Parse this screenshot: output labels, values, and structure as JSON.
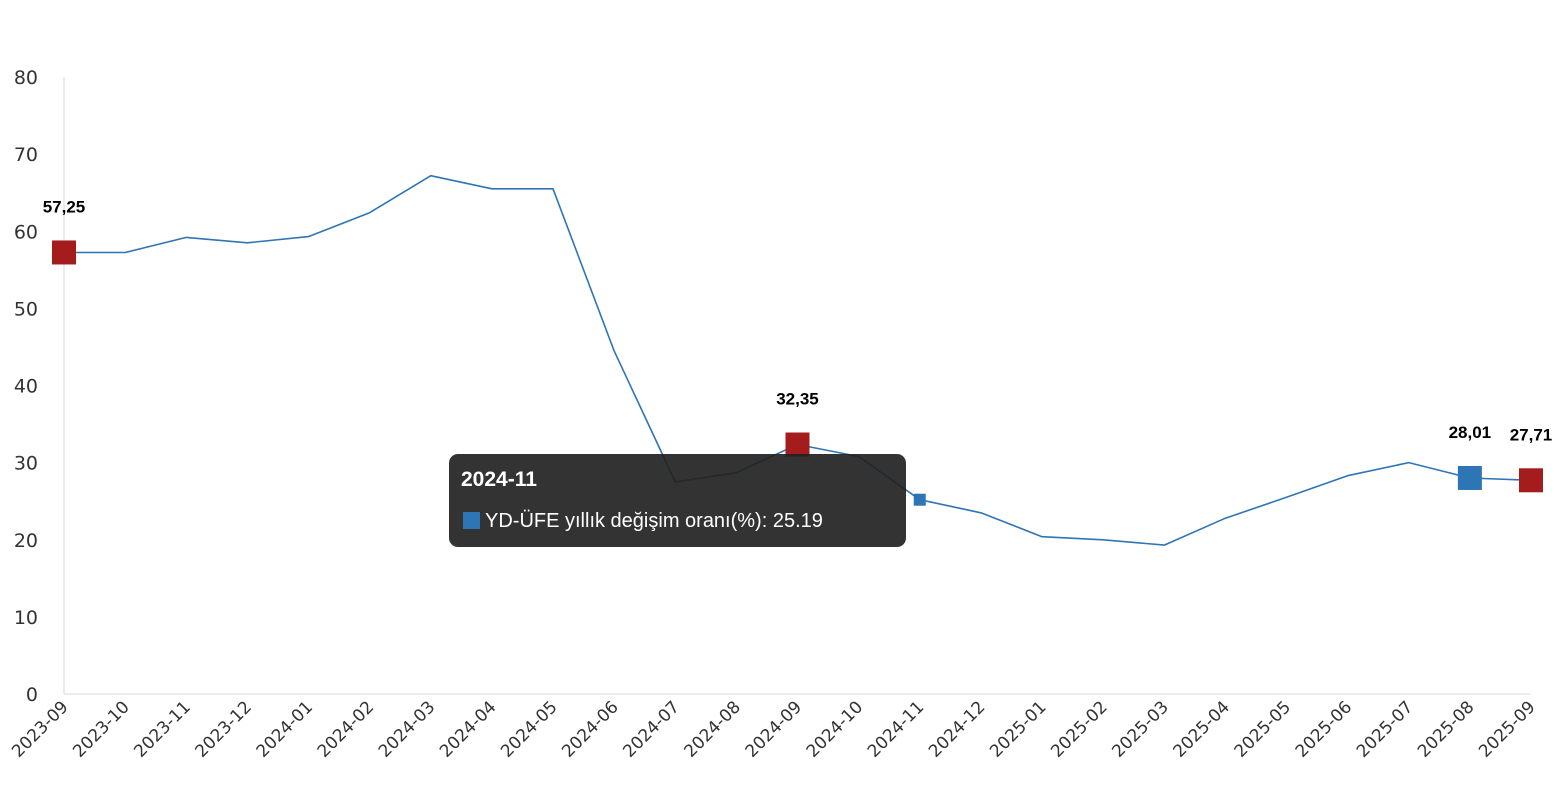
{
  "chart_data": {
    "type": "line",
    "categories": [
      "2023-09",
      "2023-10",
      "2023-11",
      "2023-12",
      "2024-01",
      "2024-02",
      "2024-03",
      "2024-04",
      "2024-05",
      "2024-06",
      "2024-07",
      "2024-08",
      "2024-09",
      "2024-10",
      "2024-11",
      "2024-12",
      "2025-01",
      "2025-02",
      "2025-03",
      "2025-04",
      "2025-05",
      "2025-06",
      "2025-07",
      "2025-08",
      "2025-09"
    ],
    "series": [
      {
        "name": "YD-ÜFE yıllık değişim oranı(%)",
        "values": [
          57.25,
          57.25,
          59.2,
          58.5,
          59.3,
          62.4,
          67.2,
          65.5,
          65.5,
          44.5,
          27.5,
          28.7,
          32.35,
          30.8,
          25.19,
          23.5,
          20.4,
          20.0,
          19.3,
          22.8,
          25.5,
          28.3,
          30.0,
          28.01,
          27.71
        ],
        "color": "#2e75b6"
      }
    ],
    "ylim": [
      0,
      80
    ],
    "yticks": [
      0,
      10,
      20,
      30,
      40,
      50,
      60,
      70,
      80
    ],
    "grid": false,
    "xlabel": "",
    "ylabel": "",
    "highlighted_points": [
      {
        "index": 0,
        "label": "57,25",
        "color": "#a51c1c"
      },
      {
        "index": 12,
        "label": "32,35",
        "color": "#a51c1c"
      },
      {
        "index": 23,
        "label": "28,01",
        "color": "#2e75b6"
      },
      {
        "index": 24,
        "label": "27,71",
        "color": "#a51c1c"
      }
    ],
    "hover_index": 14
  },
  "tooltip": {
    "title": "2024-11",
    "series_label": "YD-ÜFE yıllık değişim oranı(%)",
    "value": "25.19",
    "swatch_color": "#2e75b6"
  }
}
